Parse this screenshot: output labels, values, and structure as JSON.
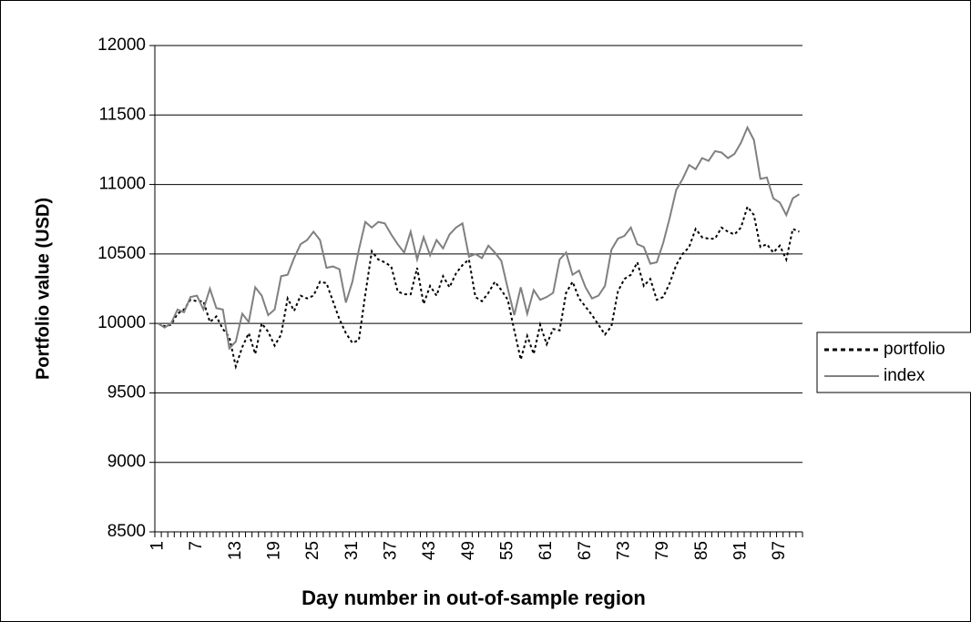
{
  "chart_data": {
    "type": "line",
    "x_label": "Day number in out-of-sample region",
    "y_label": "Portfolio value (USD)",
    "x": [
      1,
      2,
      3,
      4,
      5,
      6,
      7,
      8,
      9,
      10,
      11,
      12,
      13,
      14,
      15,
      16,
      17,
      18,
      19,
      20,
      21,
      22,
      23,
      24,
      25,
      26,
      27,
      28,
      29,
      30,
      31,
      32,
      33,
      34,
      35,
      36,
      37,
      38,
      39,
      40,
      41,
      42,
      43,
      44,
      45,
      46,
      47,
      48,
      49,
      50,
      51,
      52,
      53,
      54,
      55,
      56,
      57,
      58,
      59,
      60,
      61,
      62,
      63,
      64,
      65,
      66,
      67,
      68,
      69,
      70,
      71,
      72,
      73,
      74,
      75,
      76,
      77,
      78,
      79,
      80,
      81,
      82,
      83,
      84,
      85,
      86,
      87,
      88,
      89,
      90,
      91,
      92,
      93,
      94,
      95,
      96,
      97,
      98,
      99,
      100
    ],
    "xlim": [
      0.5,
      100.5
    ],
    "xticks": [
      1,
      7,
      13,
      19,
      25,
      31,
      37,
      43,
      49,
      55,
      61,
      67,
      73,
      79,
      85,
      91,
      97
    ],
    "ylim": [
      8500,
      12000
    ],
    "yticks": [
      8500,
      9000,
      9500,
      10000,
      10500,
      11000,
      11500,
      12000
    ],
    "grid": true,
    "legend": "right",
    "series": [
      {
        "name": "portfolio",
        "color": "#000000",
        "style": "dotted",
        "values": [
          10000,
          9980,
          9990,
          10070,
          10100,
          10170,
          10160,
          10160,
          10010,
          10050,
          9960,
          9900,
          9690,
          9830,
          9930,
          9780,
          10000,
          9940,
          9840,
          9920,
          10180,
          10090,
          10200,
          10180,
          10200,
          10300,
          10290,
          10160,
          10030,
          9930,
          9860,
          9880,
          10210,
          10520,
          10460,
          10440,
          10410,
          10230,
          10210,
          10210,
          10400,
          10140,
          10270,
          10200,
          10340,
          10260,
          10360,
          10420,
          10460,
          10190,
          10160,
          10220,
          10300,
          10240,
          10170,
          9950,
          9740,
          9910,
          9780,
          9990,
          9850,
          9960,
          9950,
          10220,
          10300,
          10180,
          10120,
          10060,
          9990,
          9920,
          9980,
          10230,
          10320,
          10350,
          10440,
          10270,
          10320,
          10170,
          10190,
          10290,
          10420,
          10500,
          10550,
          10680,
          10620,
          10610,
          10610,
          10690,
          10660,
          10640,
          10690,
          10840,
          10780,
          10550,
          10570,
          10510,
          10560,
          10460,
          10680,
          10660
        ]
      },
      {
        "name": "index",
        "color": "#808080",
        "style": "solid",
        "values": [
          10000,
          9970,
          10000,
          10100,
          10080,
          10190,
          10200,
          10100,
          10250,
          10110,
          10100,
          9820,
          9870,
          10070,
          10010,
          10260,
          10200,
          10060,
          10100,
          10340,
          10350,
          10470,
          10570,
          10600,
          10660,
          10600,
          10400,
          10410,
          10390,
          10150,
          10300,
          10530,
          10730,
          10690,
          10730,
          10720,
          10640,
          10570,
          10510,
          10660,
          10460,
          10620,
          10490,
          10600,
          10540,
          10640,
          10690,
          10720,
          10480,
          10500,
          10470,
          10560,
          10510,
          10450,
          10250,
          10060,
          10260,
          10070,
          10240,
          10170,
          10190,
          10220,
          10460,
          10510,
          10350,
          10380,
          10260,
          10180,
          10200,
          10270,
          10530,
          10610,
          10630,
          10690,
          10570,
          10550,
          10430,
          10440,
          10580,
          10760,
          10960,
          11040,
          11140,
          11110,
          11190,
          11170,
          11240,
          11230,
          11190,
          11220,
          11300,
          11410,
          11320,
          11040,
          11050,
          10900,
          10870,
          10780,
          10900,
          10930
        ]
      }
    ]
  }
}
